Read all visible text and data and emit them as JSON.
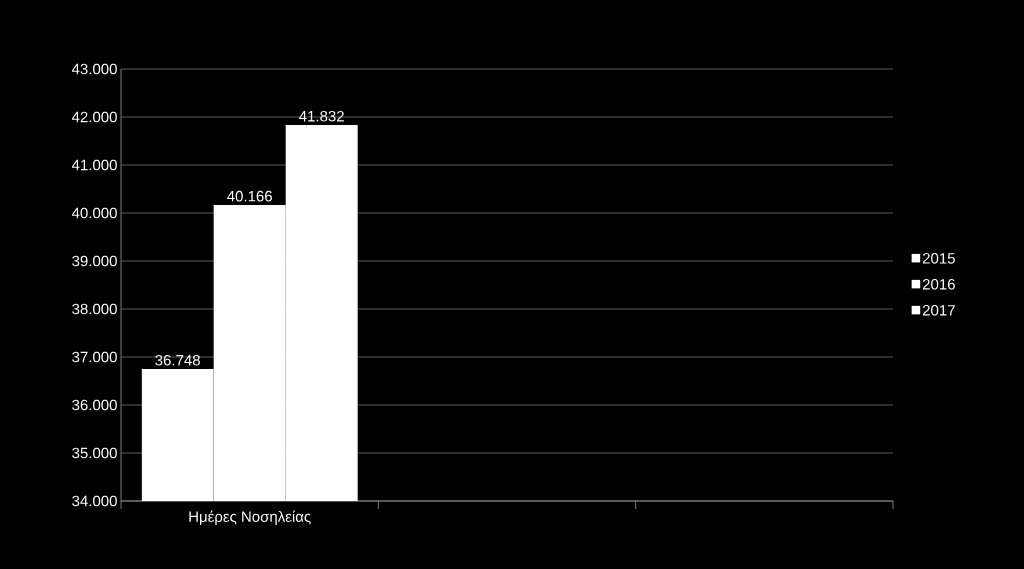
{
  "chart_data": {
    "type": "bar",
    "categories": [
      "Ημέρες Νοσηλείας",
      null,
      null
    ],
    "series": [
      {
        "name": "2015",
        "color": "#ffffff",
        "values": [
          36748,
          null,
          null
        ],
        "value_labels": [
          "36.748",
          null,
          null
        ]
      },
      {
        "name": "2016",
        "color": "#ffffff",
        "values": [
          40166,
          null,
          null
        ],
        "value_labels": [
          "40.166",
          null,
          null
        ]
      },
      {
        "name": "2017",
        "color": "#ffffff",
        "values": [
          41832,
          null,
          null
        ],
        "value_labels": [
          "41.832",
          null,
          null
        ]
      }
    ],
    "ylim": [
      34000,
      43000
    ],
    "yticks": [
      {
        "value": 34000,
        "label": "34.000"
      },
      {
        "value": 35000,
        "label": "35.000"
      },
      {
        "value": 36000,
        "label": "36.000"
      },
      {
        "value": 37000,
        "label": "37.000"
      },
      {
        "value": 38000,
        "label": "38.000"
      },
      {
        "value": 39000,
        "label": "39.000"
      },
      {
        "value": 40000,
        "label": "40.000"
      },
      {
        "value": 41000,
        "label": "41.000"
      },
      {
        "value": 42000,
        "label": "42.000"
      },
      {
        "value": 43000,
        "label": "43.000"
      }
    ],
    "grid": "y",
    "legend": "right"
  }
}
